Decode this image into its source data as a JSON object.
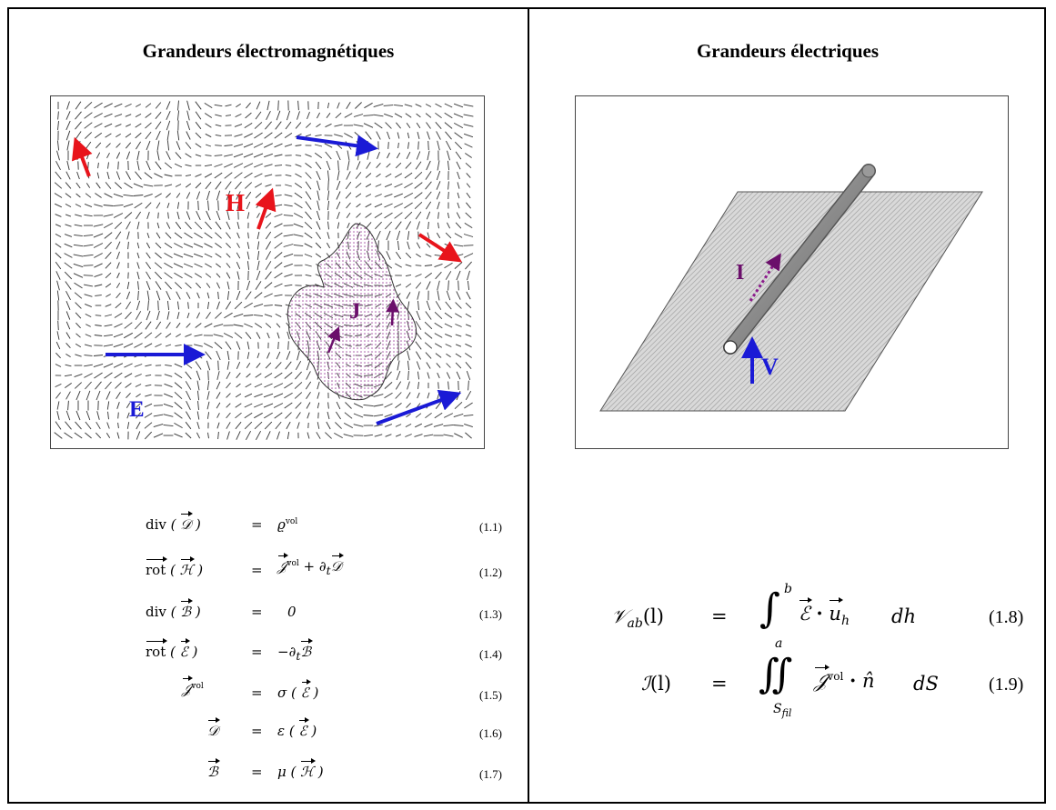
{
  "left": {
    "title": "Grandeurs électromagnétiques",
    "figure_labels": {
      "H": "H",
      "J": "J",
      "E": "E"
    },
    "equations": [
      {
        "lhs": "div",
        "lhs_arg": "𝒟",
        "op": "=",
        "rhs": "ϱ",
        "rhs_sup": "vol",
        "num": "(1.1)"
      },
      {
        "lhs": "rot",
        "lhs_arg": "ℋ",
        "op": "=",
        "rhs": "𝒥",
        "rhs_sup": "vol",
        "rhs_tail": " + ∂",
        "rhs_sub": "t",
        "rhs_vec": "𝒟",
        "num": "(1.2)"
      },
      {
        "lhs": "div",
        "lhs_arg": "ℬ",
        "op": "=",
        "rhs": "0",
        "num": "(1.3)"
      },
      {
        "lhs": "rot",
        "lhs_arg": "ℰ",
        "op": "=",
        "rhs": "−∂",
        "rhs_sub": "t",
        "rhs_vec": "ℬ",
        "num": "(1.4)"
      },
      {
        "lhs_vec": "𝒥",
        "lhs_sup": "vol",
        "op": "=",
        "rhs": "σ",
        "rhs_arg": "ℰ",
        "num": "(1.5)"
      },
      {
        "lhs_vec": "𝒟",
        "op": "=",
        "rhs": "ε",
        "rhs_arg": "ℰ",
        "num": "(1.6)"
      },
      {
        "lhs_vec": "ℬ",
        "op": "=",
        "rhs": "μ",
        "rhs_arg": "ℋ",
        "num": "(1.7)"
      }
    ]
  },
  "right": {
    "title": "Grandeurs électriques",
    "figure_labels": {
      "I": "I",
      "V": "V"
    },
    "equations": [
      {
        "lhs": "𝒱",
        "lhs_sub": "ab",
        "lhs_arg": "(l)",
        "op": "=",
        "int_upper": "b",
        "int_lower": "a",
        "body_vec": "ℰ",
        "body_dot": "·",
        "body_u": "u",
        "body_u_sub": "h",
        "diff": "dh",
        "num": "(1.8)"
      },
      {
        "lhs": "ℐ",
        "lhs_arg": "(l)",
        "op": "=",
        "int_lower": "S",
        "int_lower_sub": "fil",
        "body_vec": "𝒥",
        "body_sup": "vol",
        "body_dot": "·",
        "body_n": "n̂",
        "diff": "dS",
        "num": "(1.9)"
      }
    ]
  },
  "colors": {
    "red": "#e8141b",
    "blue": "#1a1ad6",
    "purple": "#6b0f6b",
    "gray": "#888888"
  }
}
